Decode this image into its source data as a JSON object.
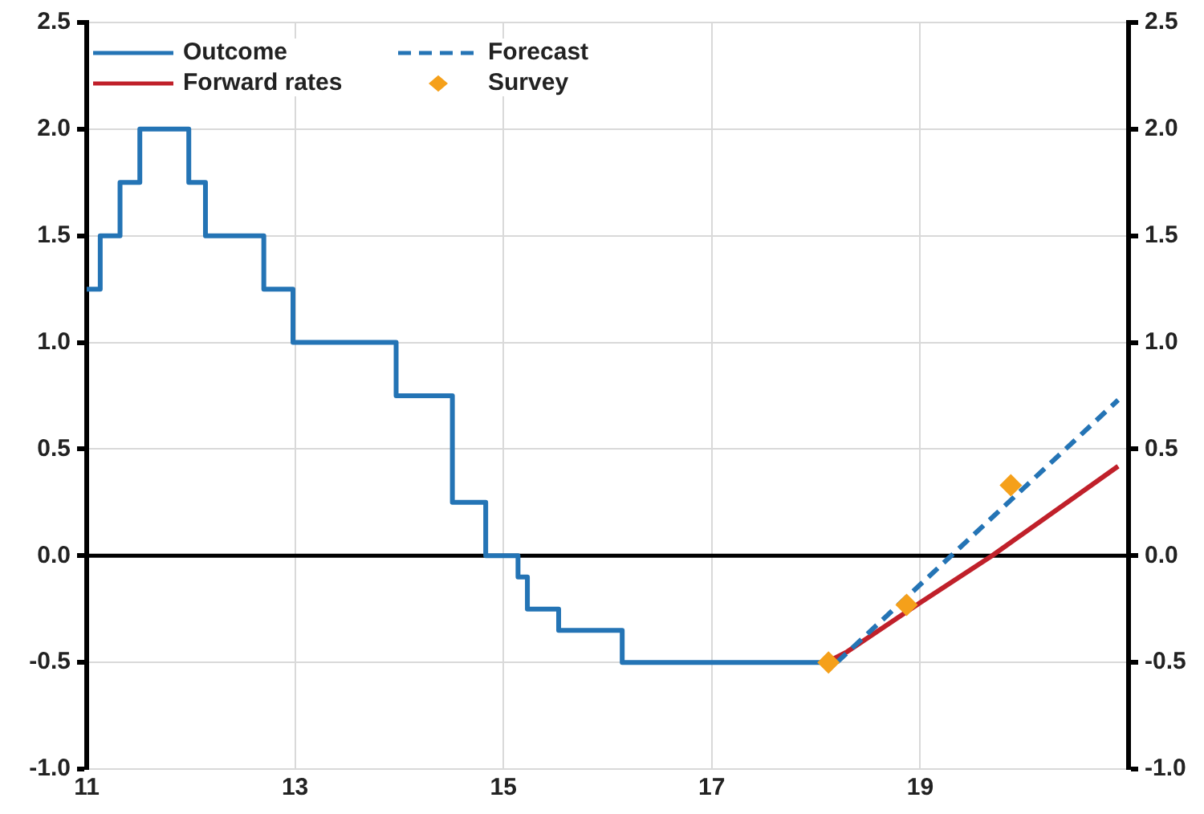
{
  "chart_data": {
    "type": "line",
    "xlim": [
      11,
      21
    ],
    "xticks": [
      11,
      13,
      15,
      17,
      19,
      {
        "value": 21,
        "label": null
      }
    ],
    "ylim": [
      -1,
      2.5
    ],
    "yticks": [
      {
        "value": -1,
        "label": "-1.0"
      },
      -0.5,
      {
        "value": 0,
        "label": "0.0"
      },
      0.5,
      {
        "value": 1,
        "label": "1.0"
      },
      1.5,
      {
        "value": 2,
        "label": "2.0"
      },
      2.5
    ],
    "y2lim": [
      -1,
      2.5
    ],
    "y2ticks": [
      {
        "value": -1,
        "label": "-1.0"
      },
      -0.5,
      {
        "value": 0,
        "label": "0.0"
      },
      0.5,
      {
        "value": 1,
        "label": "1.0"
      },
      1.5,
      {
        "value": 2,
        "label": "2.0"
      },
      2.5
    ],
    "grid": true,
    "legend": "top left",
    "ref_lines": [
      {
        "axis": "y",
        "value": 0,
        "color": "#000000"
      }
    ],
    "series": [
      {
        "name": "Outcome",
        "type": "step",
        "color": "#2474b5",
        "line_style": "solid",
        "marker": "none",
        "x": [
          11,
          11.13,
          11.32,
          11.51,
          11.98,
          12.14,
          12.7,
          12.98,
          13.97,
          14.51,
          14.83,
          15.14,
          15.23,
          15.53,
          16.14,
          18.1
        ],
        "values": [
          1.25,
          1.5,
          1.75,
          2,
          1.75,
          1.5,
          1.25,
          1,
          0.75,
          0.25,
          0,
          -0.1,
          -0.25,
          -0.35,
          -0.5,
          -0.5
        ]
      },
      {
        "name": "Forecast",
        "type": "line",
        "color": "#2474b5",
        "line_style": "dashed",
        "marker": "none",
        "x": [
          18.2,
          20.9
        ],
        "values": [
          -0.5,
          0.73
        ]
      },
      {
        "name": "Forward rates",
        "type": "line",
        "color": "#c0202a",
        "line_style": "solid",
        "marker": "none",
        "x": [
          18.1,
          18.3,
          19,
          19.69,
          20.9
        ],
        "values": [
          -0.5,
          -0.45,
          -0.22,
          0,
          0.42
        ]
      },
      {
        "name": "Survey",
        "type": "scatter",
        "color": "#f5a01a",
        "marker": "diamond",
        "x": [
          18.12,
          18.87,
          19.87
        ],
        "values": [
          -0.5,
          -0.23,
          0.33
        ]
      }
    ]
  }
}
